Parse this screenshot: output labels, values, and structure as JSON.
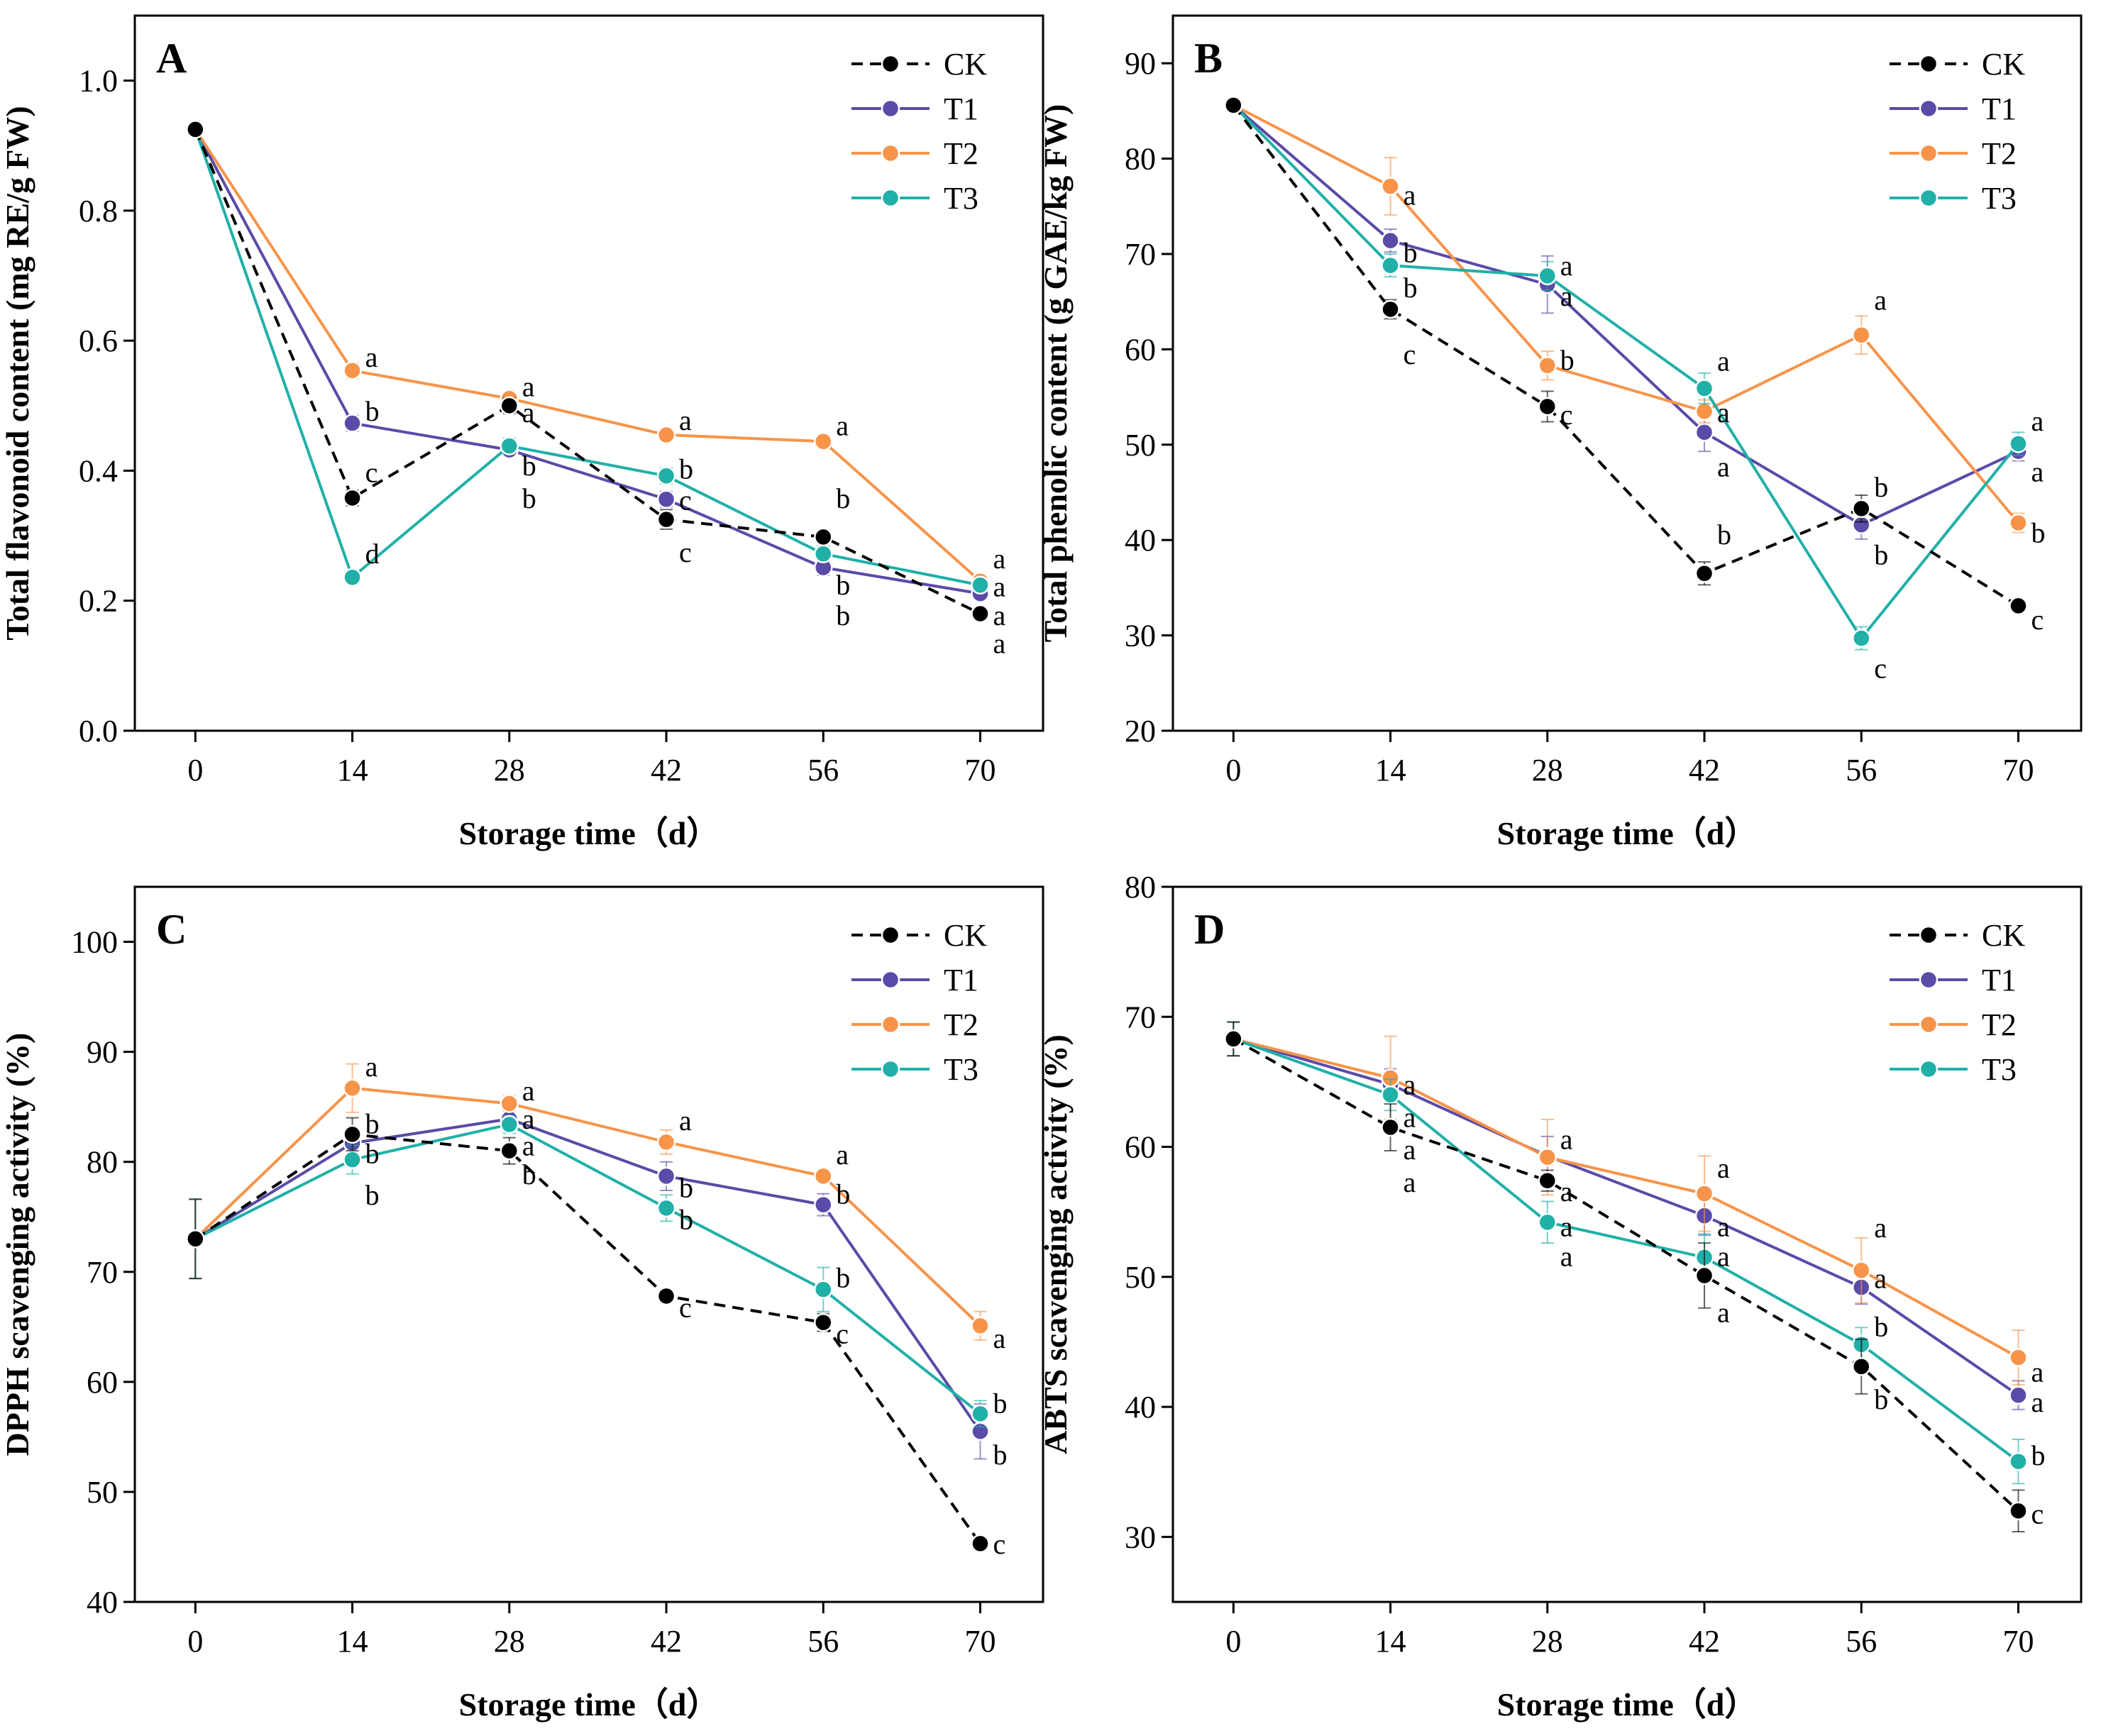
{
  "figure": {
    "background": "#ffffff",
    "series_colors": {
      "CK": "#000000",
      "T1": "#5b4aa8",
      "T2": "#f7944a",
      "T3": "#20b0a8"
    }
  },
  "chart_data": [
    {
      "panel": "A",
      "type": "line",
      "ylabel": "Total flavonoid content (mg RE/g FW)",
      "xlabel": "Storage time（d）",
      "x": [
        0,
        14,
        28,
        42,
        56,
        70
      ],
      "xlim": [
        -5.4,
        75.6
      ],
      "ylim": [
        0.0,
        1.1
      ],
      "yticks": [
        0.0,
        0.2,
        0.4,
        0.6,
        0.8,
        1.0
      ],
      "ytick_labels": [
        "0.0",
        "0.2",
        "0.4",
        "0.6",
        "0.8",
        "1.0"
      ],
      "legend": "top-right",
      "series": [
        {
          "name": "CK",
          "values": [
            0.925,
            0.358,
            0.5,
            0.325,
            0.298,
            0.18
          ],
          "errors": [
            0.005,
            0.012,
            0.012,
            0.015,
            0.01,
            0.006
          ]
        },
        {
          "name": "T1",
          "values": [
            0.925,
            0.473,
            0.432,
            0.356,
            0.251,
            0.211
          ],
          "errors": [
            0.005,
            0.012,
            0.01,
            0.012,
            0.012,
            0.008
          ]
        },
        {
          "name": "T2",
          "values": [
            0.925,
            0.554,
            0.511,
            0.455,
            0.445,
            0.23
          ],
          "errors": [
            0.005,
            0.012,
            0.01,
            0.01,
            0.01,
            0.008
          ]
        },
        {
          "name": "T3",
          "values": [
            0.925,
            0.236,
            0.438,
            0.392,
            0.272,
            0.224
          ],
          "errors": [
            0.005,
            0.01,
            0.012,
            0.012,
            0.012,
            0.008
          ]
        }
      ],
      "annotations": [
        {
          "x": 14,
          "y": 0.575,
          "text": "a"
        },
        {
          "x": 14,
          "y": 0.492,
          "text": "b"
        },
        {
          "x": 14,
          "y": 0.398,
          "text": "c"
        },
        {
          "x": 14,
          "y": 0.273,
          "text": "d"
        },
        {
          "x": 28,
          "y": 0.53,
          "text": "a"
        },
        {
          "x": 28,
          "y": 0.49,
          "text": "a"
        },
        {
          "x": 28,
          "y": 0.408,
          "text": "b"
        },
        {
          "x": 28,
          "y": 0.358,
          "text": "b"
        },
        {
          "x": 42,
          "y": 0.478,
          "text": "a"
        },
        {
          "x": 42,
          "y": 0.403,
          "text": "b"
        },
        {
          "x": 42,
          "y": 0.355,
          "text": "c"
        },
        {
          "x": 42,
          "y": 0.275,
          "text": "c"
        },
        {
          "x": 56,
          "y": 0.47,
          "text": "a"
        },
        {
          "x": 56,
          "y": 0.358,
          "text": "b"
        },
        {
          "x": 56,
          "y": 0.225,
          "text": "b"
        },
        {
          "x": 56,
          "y": 0.178,
          "text": "b"
        },
        {
          "x": 70,
          "y": 0.265,
          "text": "a"
        },
        {
          "x": 70,
          "y": 0.222,
          "text": "a"
        },
        {
          "x": 70,
          "y": 0.178,
          "text": "a"
        },
        {
          "x": 70,
          "y": 0.135,
          "text": "a"
        }
      ]
    },
    {
      "panel": "B",
      "type": "line",
      "ylabel": "Total phenolic content (g GAE/kg FW)",
      "xlabel": "Storage time（d）",
      "x": [
        0,
        14,
        28,
        42,
        56,
        70
      ],
      "xlim": [
        -5.4,
        75.6
      ],
      "ylim": [
        20,
        95
      ],
      "yticks": [
        20,
        30,
        40,
        50,
        60,
        70,
        80,
        90
      ],
      "ytick_labels": [
        "20",
        "30",
        "40",
        "50",
        "60",
        "70",
        "80",
        "90"
      ],
      "legend": "top-right",
      "series": [
        {
          "name": "CK",
          "values": [
            85.6,
            64.2,
            54.0,
            36.5,
            43.3,
            33.1
          ],
          "errors": [
            0.5,
            1.0,
            1.6,
            1.2,
            1.4,
            0.6
          ]
        },
        {
          "name": "T1",
          "values": [
            85.6,
            71.4,
            66.8,
            51.3,
            41.6,
            49.3
          ],
          "errors": [
            0.5,
            1.2,
            3.0,
            2.0,
            1.5,
            1.0
          ]
        },
        {
          "name": "T2",
          "values": [
            85.6,
            77.1,
            58.3,
            53.5,
            61.5,
            41.8
          ],
          "errors": [
            0.5,
            3.0,
            1.5,
            1.2,
            2.0,
            1.0
          ]
        },
        {
          "name": "T3",
          "values": [
            85.6,
            68.8,
            67.7,
            55.9,
            29.7,
            50.1
          ],
          "errors": [
            0.5,
            1.2,
            1.5,
            1.6,
            1.2,
            1.2
          ]
        }
      ],
      "annotations": [
        {
          "x": 14,
          "y": 76.2,
          "text": "a"
        },
        {
          "x": 14,
          "y": 70.2,
          "text": "b"
        },
        {
          "x": 14,
          "y": 66.5,
          "text": "b"
        },
        {
          "x": 14,
          "y": 59.5,
          "text": "c"
        },
        {
          "x": 28,
          "y": 68.8,
          "text": "a"
        },
        {
          "x": 28,
          "y": 65.6,
          "text": "a"
        },
        {
          "x": 28,
          "y": 58.9,
          "text": "b"
        },
        {
          "x": 28,
          "y": 53.2,
          "text": "c"
        },
        {
          "x": 42,
          "y": 58.8,
          "text": "a"
        },
        {
          "x": 42,
          "y": 53.4,
          "text": "a"
        },
        {
          "x": 42,
          "y": 47.7,
          "text": "a"
        },
        {
          "x": 42,
          "y": 40.6,
          "text": "b"
        },
        {
          "x": 56,
          "y": 65.2,
          "text": "a"
        },
        {
          "x": 56,
          "y": 45.6,
          "text": "b"
        },
        {
          "x": 56,
          "y": 38.5,
          "text": "b"
        },
        {
          "x": 56,
          "y": 26.6,
          "text": "c"
        },
        {
          "x": 70,
          "y": 52.5,
          "text": "a"
        },
        {
          "x": 70,
          "y": 47.2,
          "text": "a"
        },
        {
          "x": 70,
          "y": 40.8,
          "text": "b"
        },
        {
          "x": 70,
          "y": 31.7,
          "text": "c"
        }
      ]
    },
    {
      "panel": "C",
      "type": "line",
      "ylabel": "DPPH  scavenging activity (%)",
      "xlabel": "Storage time（d）",
      "x": [
        0,
        14,
        28,
        42,
        56,
        70
      ],
      "xlim": [
        -5.4,
        75.6
      ],
      "ylim": [
        40,
        105
      ],
      "yticks": [
        40,
        50,
        60,
        70,
        80,
        90,
        100
      ],
      "ytick_labels": [
        "40",
        "50",
        "60",
        "70",
        "80",
        "90",
        "100"
      ],
      "legend": "top-right",
      "series": [
        {
          "name": "CK",
          "values": [
            73.0,
            82.5,
            81.0,
            67.8,
            65.4,
            45.3
          ],
          "errors": [
            3.6,
            1.5,
            1.2,
            0.6,
            0.8,
            0.4
          ]
        },
        {
          "name": "T1",
          "values": [
            73.0,
            81.7,
            83.9,
            78.7,
            76.1,
            55.5
          ],
          "errors": [
            3.6,
            1.4,
            0.8,
            1.3,
            1.0,
            2.5
          ]
        },
        {
          "name": "T2",
          "values": [
            73.0,
            86.7,
            85.3,
            81.8,
            78.7,
            65.1
          ],
          "errors": [
            3.6,
            2.2,
            0.7,
            1.1,
            0.5,
            1.3
          ]
        },
        {
          "name": "T3",
          "values": [
            73.0,
            80.2,
            83.4,
            75.8,
            68.4,
            57.1
          ],
          "errors": [
            3.6,
            1.3,
            0.8,
            1.2,
            2.0,
            1.2
          ]
        }
      ],
      "annotations": [
        {
          "x": 14,
          "y": 88.7,
          "text": "a"
        },
        {
          "x": 14,
          "y": 83.5,
          "text": "b"
        },
        {
          "x": 14,
          "y": 80.8,
          "text": "b"
        },
        {
          "x": 14,
          "y": 77.0,
          "text": "b"
        },
        {
          "x": 28,
          "y": 86.5,
          "text": "a"
        },
        {
          "x": 28,
          "y": 83.9,
          "text": "a"
        },
        {
          "x": 28,
          "y": 81.5,
          "text": "a"
        },
        {
          "x": 28,
          "y": 78.9,
          "text": "b"
        },
        {
          "x": 42,
          "y": 83.8,
          "text": "a"
        },
        {
          "x": 42,
          "y": 77.7,
          "text": "b"
        },
        {
          "x": 42,
          "y": 74.8,
          "text": "b"
        },
        {
          "x": 42,
          "y": 66.8,
          "text": "c"
        },
        {
          "x": 56,
          "y": 80.7,
          "text": "a"
        },
        {
          "x": 56,
          "y": 77.1,
          "text": "b"
        },
        {
          "x": 56,
          "y": 69.5,
          "text": "b"
        },
        {
          "x": 56,
          "y": 64.4,
          "text": "c"
        },
        {
          "x": 70,
          "y": 64.0,
          "text": "a"
        },
        {
          "x": 70,
          "y": 58.1,
          "text": "b"
        },
        {
          "x": 70,
          "y": 53.4,
          "text": "b"
        },
        {
          "x": 70,
          "y": 45.3,
          "text": "c"
        }
      ]
    },
    {
      "panel": "D",
      "type": "line",
      "ylabel": "ABTS  scavenging activity (%)",
      "xlabel": "Storage time（d）",
      "x": [
        0,
        14,
        28,
        42,
        56,
        70
      ],
      "xlim": [
        -5.4,
        75.6
      ],
      "ylim": [
        25,
        80
      ],
      "yticks": [
        30,
        40,
        50,
        60,
        70,
        80
      ],
      "ytick_labels": [
        "30",
        "40",
        "50",
        "60",
        "70",
        "80"
      ],
      "legend": "top-right",
      "series": [
        {
          "name": "CK",
          "values": [
            68.3,
            61.5,
            57.4,
            50.1,
            43.1,
            32.0
          ],
          "errors": [
            1.3,
            1.8,
            0.8,
            2.5,
            2.1,
            1.6
          ]
        },
        {
          "name": "T1",
          "values": [
            68.3,
            64.8,
            59.3,
            54.7,
            49.2,
            40.9
          ],
          "errors": [
            1.3,
            1.2,
            1.5,
            1.5,
            1.3,
            1.1
          ]
        },
        {
          "name": "T2",
          "values": [
            68.3,
            65.3,
            59.2,
            56.4,
            50.5,
            43.8
          ],
          "errors": [
            1.3,
            3.2,
            2.9,
            2.9,
            2.5,
            2.1
          ]
        },
        {
          "name": "T3",
          "values": [
            68.3,
            64.0,
            54.2,
            51.5,
            44.8,
            35.8
          ],
          "errors": [
            1.3,
            1.2,
            1.6,
            1.8,
            1.3,
            1.7
          ]
        }
      ],
      "annotations": [
        {
          "x": 14,
          "y": 64.8,
          "text": "a"
        },
        {
          "x": 14,
          "y": 62.3,
          "text": "a"
        },
        {
          "x": 14,
          "y": 59.8,
          "text": "a"
        },
        {
          "x": 14,
          "y": 57.3,
          "text": "a"
        },
        {
          "x": 28,
          "y": 60.6,
          "text": "a"
        },
        {
          "x": 28,
          "y": 56.6,
          "text": "a"
        },
        {
          "x": 28,
          "y": 53.9,
          "text": "a"
        },
        {
          "x": 28,
          "y": 51.6,
          "text": "a"
        },
        {
          "x": 42,
          "y": 58.4,
          "text": "a"
        },
        {
          "x": 42,
          "y": 53.9,
          "text": "a"
        },
        {
          "x": 42,
          "y": 51.6,
          "text": "a"
        },
        {
          "x": 42,
          "y": 47.3,
          "text": "a"
        },
        {
          "x": 56,
          "y": 53.8,
          "text": "a"
        },
        {
          "x": 56,
          "y": 49.9,
          "text": "a"
        },
        {
          "x": 56,
          "y": 46.2,
          "text": "b"
        },
        {
          "x": 56,
          "y": 40.6,
          "text": "b"
        },
        {
          "x": 70,
          "y": 42.7,
          "text": "a"
        },
        {
          "x": 70,
          "y": 40.4,
          "text": "a"
        },
        {
          "x": 70,
          "y": 36.3,
          "text": "b"
        },
        {
          "x": 70,
          "y": 31.8,
          "text": "c"
        }
      ]
    }
  ]
}
